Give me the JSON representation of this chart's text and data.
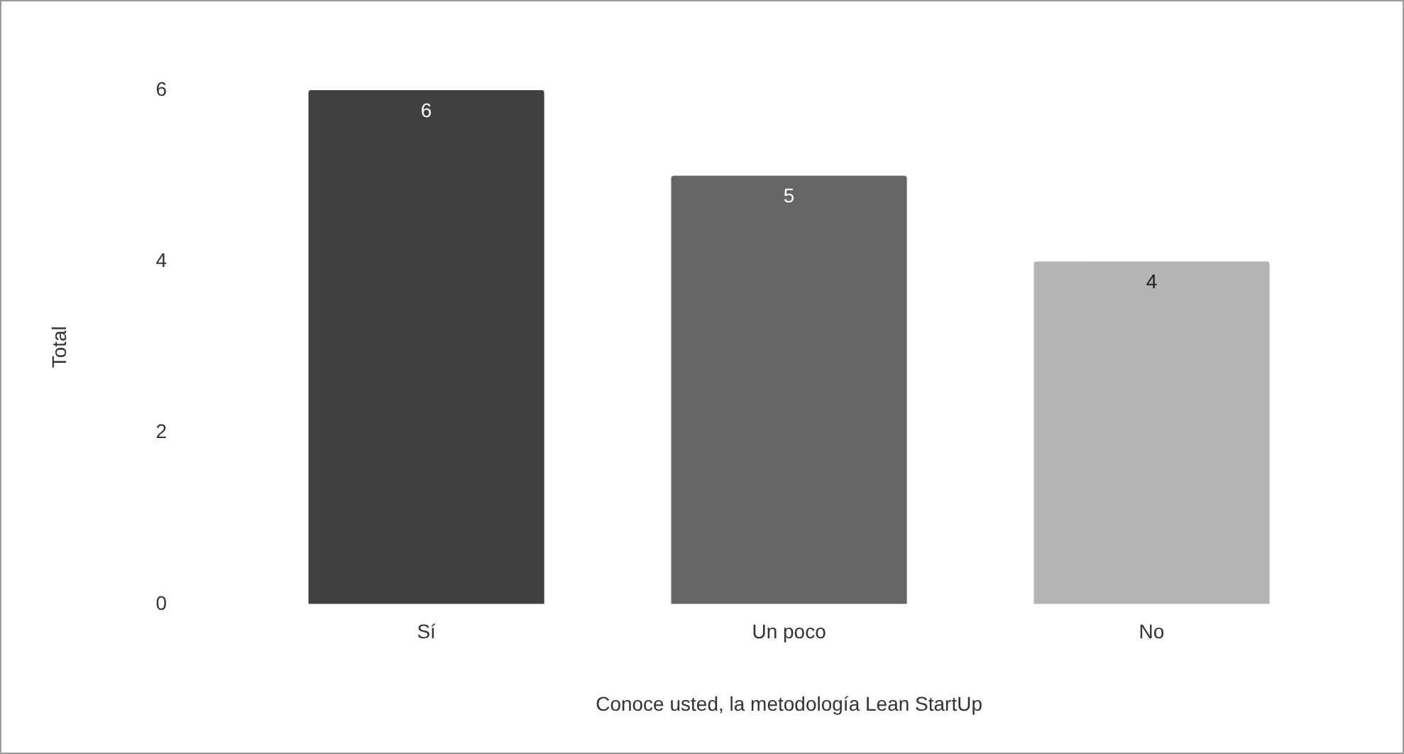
{
  "chart_data": {
    "type": "bar",
    "xlabel": "Conoce usted, la metodología Lean StartUp",
    "ylabel": "Total",
    "categories": [
      "Sí",
      "Un poco",
      "No"
    ],
    "values": [
      6,
      5,
      4
    ],
    "colors": [
      "#404040",
      "#656565",
      "#b4b4b4"
    ],
    "ylim": [
      0,
      6
    ],
    "yticks": [
      0,
      2,
      4,
      6
    ],
    "grid": false,
    "legend": false,
    "data_labels": true
  }
}
